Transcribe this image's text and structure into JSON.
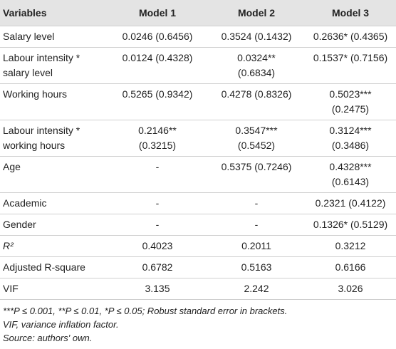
{
  "table": {
    "header": [
      "Variables",
      "Model 1",
      "Model 2",
      "Model 3"
    ],
    "rows": [
      [
        "Salary level",
        "0.0246 (0.6456)",
        "0.3524 (0.1432)",
        "0.2636* (0.4365)"
      ],
      [
        "Labour intensity * salary level",
        "0.0124 (0.4328)",
        "0.0324** (0.6834)",
        "0.1537* (0.7156)"
      ],
      [
        "Working hours",
        "0.5265 (0.9342)",
        "0.4278 (0.8326)",
        "0.5023*** (0.2475)"
      ],
      [
        "Labour intensity * working hours",
        "0.2146** (0.3215)",
        "0.3547*** (0.5452)",
        "0.3124*** (0.3486)"
      ],
      [
        "Age",
        "-",
        "0.5375 (0.7246)",
        "0.4328*** (0.6143)"
      ],
      [
        "Academic",
        "-",
        "-",
        "0.2321 (0.4122)"
      ],
      [
        "Gender",
        "-",
        "-",
        "0.1326* (0.5129)"
      ],
      [
        "R²",
        "0.4023",
        "0.2011",
        "0.3212"
      ],
      [
        "Adjusted R-square",
        "0.6782",
        "0.5163",
        "0.6166"
      ],
      [
        "VIF",
        "3.135",
        "2.242",
        "3.026"
      ]
    ]
  },
  "footnotes": [
    "***P ≤ 0.001, **P ≤ 0.01, *P ≤ 0.05; Robust standard error in brackets.",
    "VIF, variance inflation factor.",
    "Source: authors' own."
  ]
}
